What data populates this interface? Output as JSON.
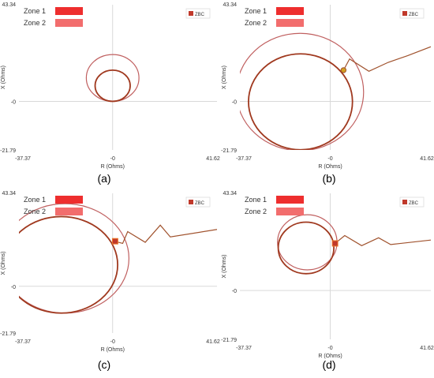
{
  "colors": {
    "zone1": "#ee2e2e",
    "zone2": "#f26d6d",
    "zbc": "#c0392b",
    "trajectory": "#a0522d",
    "circle_inner": "#a0391f",
    "circle_outer": "#c06060",
    "axis": "#d9d9d9",
    "text": "#333333"
  },
  "legend": {
    "zone1_label": "Zone 1",
    "zone2_label": "Zone 2",
    "zbc_label": "ZBC"
  },
  "chart_data": [
    {
      "panel_label": "(a)",
      "type": "scatter",
      "xlabel": "R (Ohms)",
      "ylabel": "X (Ohms)",
      "xlim": [
        -37.37,
        41.62
      ],
      "ylim": [
        -21.79,
        43.34
      ],
      "x_tick_labels": [
        "-37.37",
        "-0",
        "41.62"
      ],
      "y_tick_labels": [
        "43.34",
        "-0",
        "-21.79"
      ],
      "zone1_circle": {
        "center": [
          0,
          7
        ],
        "radius": 7
      },
      "zone2_circle": {
        "center": [
          0,
          10.5
        ],
        "radius": 10.5
      },
      "trajectory": [],
      "zbc_point": null
    },
    {
      "panel_label": "(b)",
      "type": "scatter",
      "xlabel": "R (Ohms)",
      "ylabel": "X (Ohms)",
      "xlim": [
        -37.37,
        41.62
      ],
      "ylim": [
        -21.79,
        43.34
      ],
      "x_tick_labels": [
        "-37.37",
        "-0",
        "41.62"
      ],
      "y_tick_labels": [
        "43.34",
        "-0",
        "-21.79"
      ],
      "zone1_circle": {
        "center": [
          -12.3,
          -0.2
        ],
        "radius": 21.5
      },
      "zone2_circle": {
        "center": [
          -12.5,
          4.2
        ],
        "radius": 26.3
      },
      "trajectory": [
        [
          5.5,
          14
        ],
        [
          8,
          19
        ],
        [
          16,
          13.5
        ],
        [
          24,
          17.5
        ],
        [
          32,
          20.5
        ],
        [
          41.62,
          24.5
        ]
      ],
      "zbc_point": [
        5.5,
        14
      ]
    },
    {
      "panel_label": "(c)",
      "type": "scatter",
      "xlabel": "R (Ohms)",
      "ylabel": "X (Ohms)",
      "xlim": [
        -37.37,
        41.62
      ],
      "ylim": [
        -21.79,
        43.34
      ],
      "x_tick_labels": [
        "-37.37",
        "-0",
        "41.62"
      ],
      "y_tick_labels": [
        "43.34",
        "-0",
        "-21.79"
      ],
      "zone1_circle": {
        "center": [
          -20.5,
          10
        ],
        "radius": 22.5
      },
      "zone2_circle": {
        "center": [
          -19,
          13
        ],
        "radius": 25.5
      },
      "trajectory": [
        [
          0.7,
          21
        ],
        [
          4,
          20
        ],
        [
          6,
          25.5
        ],
        [
          13,
          20.5
        ],
        [
          19,
          28.5
        ],
        [
          23,
          23
        ],
        [
          41.62,
          26.5
        ]
      ],
      "zbc_point": [
        1,
        21
      ]
    },
    {
      "panel_label": "(d)",
      "type": "scatter",
      "xlabel": "R (Ohms)",
      "ylabel": "X (Ohms)",
      "xlim": [
        -37.37,
        41.62
      ],
      "ylim": [
        -21.79,
        43.34
      ],
      "x_tick_labels": [
        "-37.37",
        "-0",
        "41.62"
      ],
      "y_tick_labels": [
        "43.34",
        "-0",
        "-21.79"
      ],
      "zone1_circle": {
        "center": [
          -10,
          19
        ],
        "radius": 11.5
      },
      "zone2_circle": {
        "center": [
          -9.5,
          21.5
        ],
        "radius": 12.3
      },
      "trajectory": [
        [
          2,
          21
        ],
        [
          6,
          24.5
        ],
        [
          13,
          20
        ],
        [
          20,
          23.5
        ],
        [
          25,
          20.5
        ],
        [
          41.62,
          22.5
        ]
      ],
      "zbc_point": [
        2,
        21
      ]
    }
  ]
}
